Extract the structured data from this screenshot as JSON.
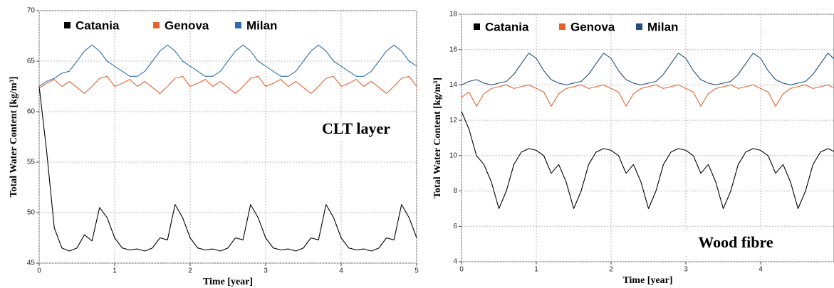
{
  "chart_data": [
    {
      "type": "line",
      "annotation": "CLT layer",
      "x_label": "Time [year]",
      "y_label": "Total Water Content [kg/m³]",
      "xlim": [
        0,
        5
      ],
      "xticks": [
        0,
        1,
        2,
        3,
        4,
        5
      ],
      "ylim": [
        45,
        70
      ],
      "yticks": [
        45,
        50,
        55,
        60,
        65,
        70
      ],
      "grid": true,
      "x": [
        0,
        0.1,
        0.2,
        0.3,
        0.4,
        0.5,
        0.6,
        0.7,
        0.8,
        0.9,
        1,
        1.1,
        1.2,
        1.3,
        1.4,
        1.5,
        1.6,
        1.7,
        1.8,
        1.9,
        2,
        2.1,
        2.2,
        2.3,
        2.4,
        2.5,
        2.6,
        2.7,
        2.8,
        2.9,
        3,
        3.1,
        3.2,
        3.3,
        3.4,
        3.5,
        3.6,
        3.7,
        3.8,
        3.9,
        4,
        4.1,
        4.2,
        4.3,
        4.4,
        4.5,
        4.6,
        4.7,
        4.8,
        4.9,
        5
      ],
      "series": [
        {
          "name": "Catania",
          "color": "#000000",
          "values": [
            62.5,
            56,
            48.5,
            46.5,
            46.2,
            46.5,
            47.8,
            47.2,
            50.5,
            49.5,
            47.5,
            46.5,
            46.3,
            46.4,
            46.2,
            46.5,
            47.5,
            47.3,
            50.8,
            49.5,
            47.5,
            46.5,
            46.3,
            46.4,
            46.2,
            46.5,
            47.5,
            47.3,
            50.8,
            49.5,
            47.5,
            46.5,
            46.3,
            46.4,
            46.2,
            46.5,
            47.5,
            47.3,
            50.8,
            49.5,
            47.5,
            46.5,
            46.3,
            46.4,
            46.2,
            46.5,
            47.5,
            47.3,
            50.8,
            49.5,
            47.5
          ]
        },
        {
          "name": "Genova",
          "color": "#e8602c",
          "values": [
            62.3,
            62.8,
            63.2,
            62.5,
            63,
            62.4,
            61.8,
            62.5,
            63.3,
            63.5,
            62.5,
            62.8,
            63.2,
            62.5,
            63,
            62.4,
            61.8,
            62.5,
            63.3,
            63.5,
            62.5,
            62.8,
            63.2,
            62.5,
            63,
            62.4,
            61.8,
            62.5,
            63.3,
            63.5,
            62.5,
            62.8,
            63.2,
            62.5,
            63,
            62.4,
            61.8,
            62.5,
            63.3,
            63.5,
            62.5,
            62.8,
            63.2,
            62.5,
            63,
            62.4,
            61.8,
            62.5,
            63.3,
            63.5,
            62.5
          ]
        },
        {
          "name": "Milan",
          "color": "#2e6eaa",
          "values": [
            62.5,
            63,
            63.3,
            63.8,
            64,
            65,
            66,
            66.6,
            66,
            65,
            64.5,
            64,
            63.5,
            63.5,
            64,
            65,
            66,
            66.6,
            66,
            65,
            64.5,
            64,
            63.5,
            63.5,
            64,
            65,
            66,
            66.6,
            66,
            65,
            64.5,
            64,
            63.5,
            63.5,
            64,
            65,
            66,
            66.6,
            66,
            65,
            64.5,
            64,
            63.5,
            63.5,
            64,
            65,
            66,
            66.6,
            66,
            65,
            64.5
          ]
        }
      ]
    },
    {
      "type": "line",
      "annotation": "Wood fibre",
      "x_label": "Time [year]",
      "y_label": "Total Water Content [kg/m³]",
      "xlim": [
        0,
        5
      ],
      "xticks": [
        0,
        1,
        2,
        3,
        4
      ],
      "ylim": [
        4,
        18
      ],
      "yticks": [
        4,
        6,
        8,
        10,
        12,
        14,
        16,
        18
      ],
      "grid": true,
      "x": [
        0,
        0.1,
        0.2,
        0.3,
        0.4,
        0.5,
        0.6,
        0.7,
        0.8,
        0.9,
        1,
        1.1,
        1.2,
        1.3,
        1.4,
        1.5,
        1.6,
        1.7,
        1.8,
        1.9,
        2,
        2.1,
        2.2,
        2.3,
        2.4,
        2.5,
        2.6,
        2.7,
        2.8,
        2.9,
        3,
        3.1,
        3.2,
        3.3,
        3.4,
        3.5,
        3.6,
        3.7,
        3.8,
        3.9,
        4,
        4.1,
        4.2,
        4.3,
        4.4,
        4.5,
        4.6,
        4.7,
        4.8,
        4.9,
        5
      ],
      "series": [
        {
          "name": "Catania",
          "color": "#000000",
          "values": [
            12.5,
            11.5,
            10,
            9.5,
            8.5,
            7,
            8,
            9.5,
            10.2,
            10.4,
            10.3,
            10,
            9,
            9.5,
            8.5,
            7,
            8,
            9.5,
            10.2,
            10.4,
            10.3,
            10,
            9,
            9.5,
            8.5,
            7,
            8,
            9.5,
            10.2,
            10.4,
            10.3,
            10,
            9,
            9.5,
            8.5,
            7,
            8,
            9.5,
            10.2,
            10.4,
            10.3,
            10,
            9,
            9.5,
            8.5,
            7,
            8,
            9.5,
            10.2,
            10.4,
            10.2
          ]
        },
        {
          "name": "Genova",
          "color": "#e8602c",
          "values": [
            13.3,
            13.6,
            12.8,
            13.5,
            13.8,
            13.9,
            14,
            13.8,
            13.9,
            14,
            13.8,
            13.6,
            12.8,
            13.5,
            13.8,
            13.9,
            14,
            13.8,
            13.9,
            14,
            13.8,
            13.6,
            12.8,
            13.5,
            13.8,
            13.9,
            14,
            13.8,
            13.9,
            14,
            13.8,
            13.6,
            12.8,
            13.5,
            13.8,
            13.9,
            14,
            13.8,
            13.9,
            14,
            13.8,
            13.6,
            12.8,
            13.5,
            13.8,
            13.9,
            14,
            13.8,
            13.9,
            14,
            13.8
          ]
        },
        {
          "name": "Milan",
          "color": "#1f4e79",
          "values": [
            14,
            14.2,
            14.3,
            14.1,
            14,
            14.1,
            14.2,
            14.6,
            15.2,
            15.8,
            15.5,
            14.8,
            14.3,
            14.1,
            14,
            14.1,
            14.2,
            14.6,
            15.2,
            15.8,
            15.5,
            14.8,
            14.3,
            14.1,
            14,
            14.1,
            14.2,
            14.6,
            15.2,
            15.8,
            15.5,
            14.8,
            14.3,
            14.1,
            14,
            14.1,
            14.2,
            14.6,
            15.2,
            15.8,
            15.5,
            14.8,
            14.3,
            14.1,
            14,
            14.1,
            14.2,
            14.6,
            15.2,
            15.8,
            15.4
          ]
        }
      ]
    }
  ]
}
